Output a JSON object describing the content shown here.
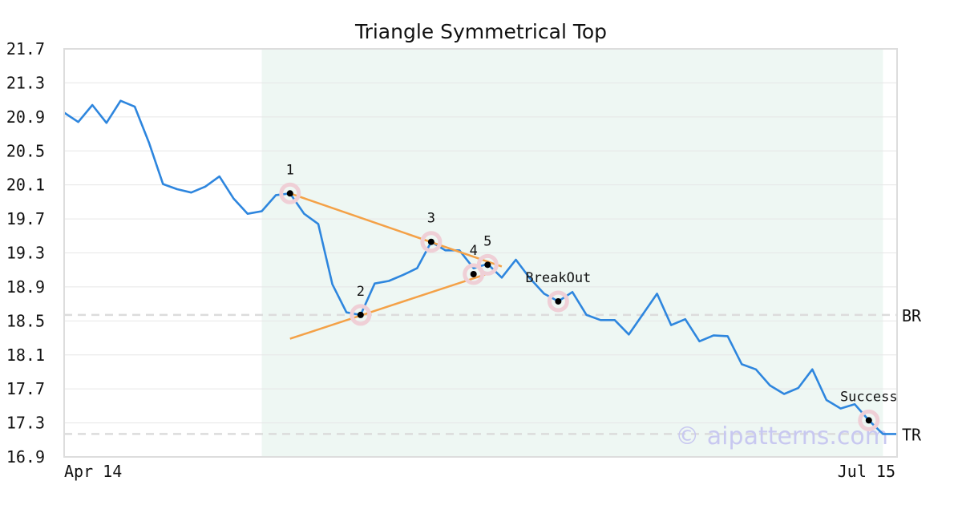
{
  "chart_data": {
    "type": "line",
    "title": "Triangle Symmetrical Top",
    "xlabel": "",
    "ylabel": "",
    "x_tick_labels": [
      "Apr 14",
      "Jul 15"
    ],
    "y_ticks": [
      "16.9",
      "17.3",
      "17.7",
      "18.1",
      "18.5",
      "18.9",
      "19.3",
      "19.7",
      "20.1",
      "20.5",
      "20.9",
      "21.3",
      "21.7"
    ],
    "ylim": [
      16.9,
      21.7
    ],
    "grid": true,
    "shaded_x_range": [
      14,
      58
    ],
    "series": [
      {
        "color": "#2e86de",
        "values": [
          20.95,
          20.84,
          21.04,
          20.83,
          21.09,
          21.02,
          20.6,
          20.11,
          20.05,
          20.01,
          20.08,
          20.2,
          19.94,
          19.76,
          19.79,
          19.98,
          20.0,
          19.76,
          19.64,
          18.93,
          18.6,
          18.57,
          18.94,
          18.97,
          19.04,
          19.12,
          19.43,
          19.33,
          19.33,
          19.12,
          19.17,
          19.01,
          19.22,
          19.0,
          18.82,
          18.73,
          18.84,
          18.57,
          18.51,
          18.51,
          18.34,
          18.58,
          18.82,
          18.45,
          18.52,
          18.26,
          18.33,
          18.32,
          17.99,
          17.93,
          17.74,
          17.64,
          17.71,
          17.93,
          17.57,
          17.47,
          17.52,
          17.33,
          17.17,
          17.17
        ]
      }
    ],
    "trendlines": [
      {
        "color": "#f4a147",
        "from": [
          16,
          20.0
        ],
        "to": [
          31,
          19.14
        ]
      },
      {
        "color": "#f4a147",
        "from": [
          16,
          18.29
        ],
        "to": [
          29.9,
          19.05
        ]
      }
    ],
    "points": [
      {
        "label": "1",
        "x": 16,
        "y": 20.0
      },
      {
        "label": "2",
        "x": 21,
        "y": 18.57
      },
      {
        "label": "3",
        "x": 26,
        "y": 19.43
      },
      {
        "label": "4",
        "x": 29,
        "y": 19.05
      },
      {
        "label": "5",
        "x": 30,
        "y": 19.16
      },
      {
        "label": "BreakOut",
        "x": 35,
        "y": 18.73
      },
      {
        "label": "Success",
        "x": 57,
        "y": 17.33
      }
    ],
    "levels": [
      {
        "label": "BR",
        "y": 18.57
      },
      {
        "label": "TR",
        "y": 17.17
      }
    ],
    "watermark": "© aipatterns.com"
  }
}
